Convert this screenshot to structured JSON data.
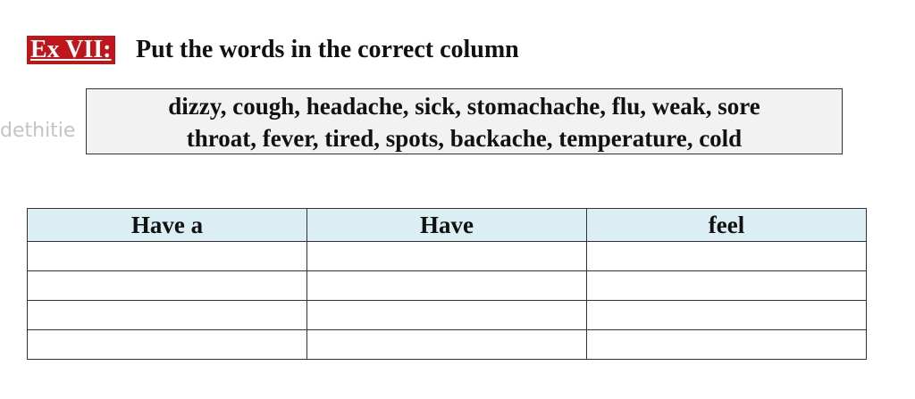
{
  "header": {
    "label": "Ex VII:",
    "instruction": "Put the words in the correct column"
  },
  "word_box": {
    "lines": [
      "dizzy, cough, headache, sick, stomachache, flu, weak, sore",
      "throat, fever, tired, spots, backache, temperature, cold"
    ]
  },
  "watermark": "dethitie",
  "table": {
    "headers": [
      "Have a",
      "Have",
      "feel"
    ]
  }
}
